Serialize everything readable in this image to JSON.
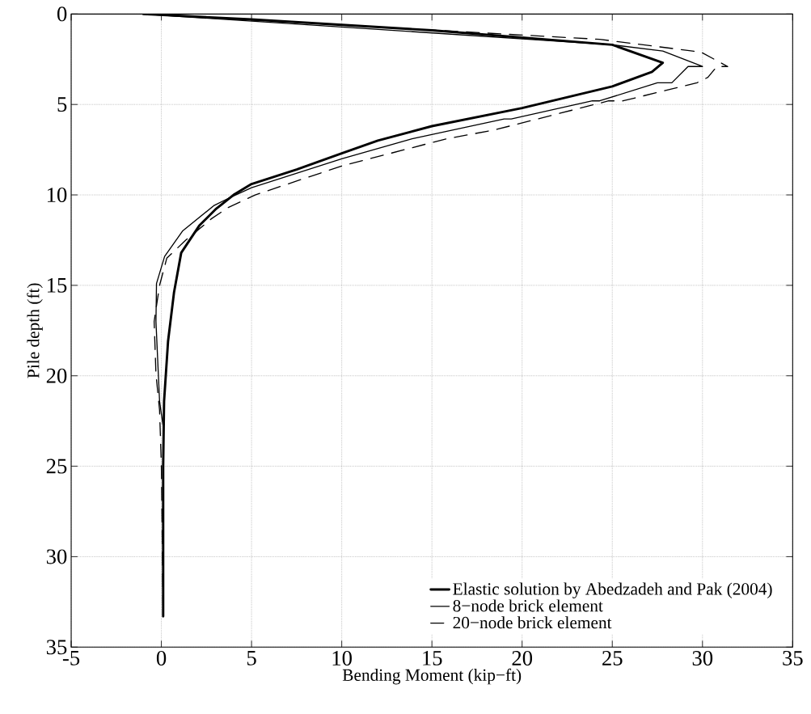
{
  "chart_data": {
    "type": "line",
    "xlabel": "Bending Moment (kip−ft)",
    "ylabel": "Pile depth (ft)",
    "xlim": [
      -5,
      35
    ],
    "xticks": [
      -5,
      0,
      5,
      10,
      15,
      20,
      25,
      30,
      35
    ],
    "ylim": [
      35,
      0
    ],
    "yticks": [
      0,
      5,
      10,
      15,
      20,
      25,
      30,
      35
    ],
    "grid": true,
    "legend": "bottom right",
    "marker": "none",
    "series": [
      {
        "name": "Elastic solution by Abedzadeh and Pak (2004)",
        "color": "#000000",
        "line_style": "solid",
        "x": [
          -1,
          5,
          15,
          25,
          27.8,
          27.2,
          25,
          20,
          15,
          12,
          10,
          7.5,
          5,
          4,
          3.0,
          2.1,
          1.1,
          0.7,
          0.37,
          0.15,
          0.1,
          0.1
        ],
        "values": [
          0,
          0.3,
          0.9,
          1.7,
          2.7,
          3.2,
          4.0,
          5.2,
          6.2,
          7.0,
          7.7,
          8.6,
          9.4,
          10.0,
          10.8,
          11.7,
          13.2,
          15.4,
          18.1,
          21.4,
          25,
          33.3
        ]
      },
      {
        "name": "8−node brick element",
        "color": "#000000",
        "line_style": "solid",
        "x": [
          -1,
          25,
          27.8,
          30.0,
          29.2,
          28.3,
          27.5,
          24.3,
          23.9,
          19.4,
          19.0,
          13.9,
          10,
          5,
          3.9,
          2.9,
          1.17,
          0.18,
          -0.27,
          -0.3,
          -0.1,
          0.1,
          0.1
        ],
        "values": [
          0,
          1.7,
          2.05,
          2.9,
          2.9,
          3.8,
          3.8,
          4.8,
          4.8,
          5.8,
          5.8,
          6.9,
          8.0,
          9.6,
          10.1,
          10.6,
          12.0,
          13.4,
          14.9,
          17.0,
          21.4,
          22.8,
          33.3
        ]
      },
      {
        "name": "20−node brick element",
        "color": "#000000",
        "line_style": "dashed",
        "x": [
          -1,
          24.3,
          29.9,
          31.4,
          30.8,
          30.3,
          29.7,
          25.6,
          24.8,
          18.5,
          15.8,
          10,
          5.2,
          3.7,
          2.8,
          1.35,
          0.3,
          -0.1,
          -0.4,
          -0.3,
          -0.1,
          0.0,
          0.1
        ],
        "values": [
          0,
          1.4,
          2.1,
          2.9,
          2.9,
          3.5,
          3.8,
          4.8,
          4.8,
          6.4,
          6.9,
          8.4,
          10.0,
          10.7,
          11.3,
          12.5,
          13.5,
          15.0,
          17.0,
          19.9,
          21.9,
          25,
          33.3
        ]
      }
    ]
  }
}
